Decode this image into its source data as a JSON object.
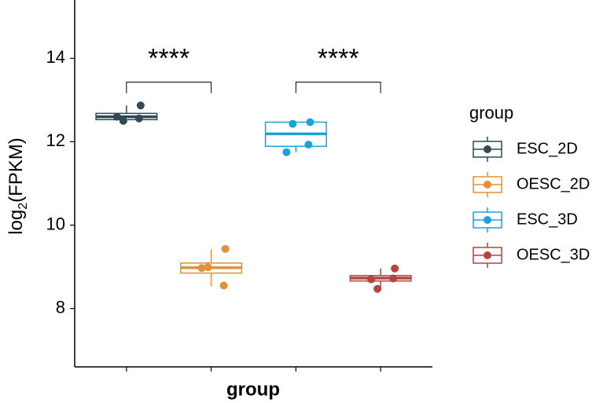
{
  "chart_data": {
    "type": "box",
    "x_label": "group",
    "y_label_parts": [
      "log",
      "2",
      "(FPKM)"
    ],
    "legend_title": "group",
    "categories": [
      null,
      null,
      null,
      null
    ],
    "ylim": [
      6.6,
      15.4
    ],
    "yticks": [
      8,
      10,
      12,
      14
    ],
    "series": [
      {
        "name": "ESC_2D",
        "color": "#2f4a52",
        "min": 12.47,
        "q1": 12.53,
        "median": 12.6,
        "q3": 12.68,
        "max": 12.87,
        "points": [
          12.87,
          12.5,
          12.56,
          12.6
        ]
      },
      {
        "name": "OESC_2D",
        "color": "#e0913a",
        "min": 8.53,
        "q1": 8.85,
        "median": 8.98,
        "q3": 9.09,
        "max": 9.42,
        "points": [
          9.43,
          8.99,
          8.55,
          8.97
        ]
      },
      {
        "name": "ESC_3D",
        "color": "#1ba3d8",
        "min": 11.75,
        "q1": 11.89,
        "median": 12.19,
        "q3": 12.47,
        "max": 12.47,
        "points": [
          12.47,
          12.43,
          11.93,
          11.75
        ]
      },
      {
        "name": "OESC_3D",
        "color": "#b5443e",
        "min": 8.47,
        "q1": 8.66,
        "median": 8.73,
        "q3": 8.79,
        "max": 8.96,
        "points": [
          8.96,
          8.47,
          8.72,
          8.7
        ]
      }
    ],
    "comparisons": [
      {
        "groups": [
          0,
          1
        ],
        "label": "****",
        "y": 13.43
      },
      {
        "groups": [
          2,
          3
        ],
        "label": "****",
        "y": 13.43
      }
    ]
  }
}
